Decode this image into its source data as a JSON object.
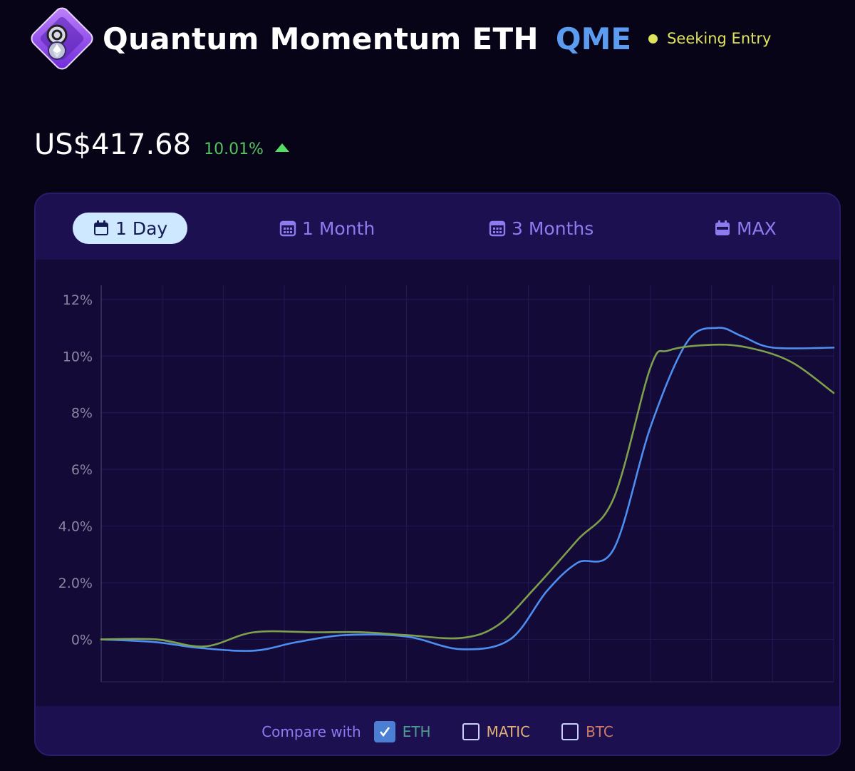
{
  "header": {
    "fund_name": "Quantum Momentum ETH",
    "ticker": "QME",
    "status": "Seeking Entry",
    "logo_icon": "eth-vault-logo-icon"
  },
  "price": {
    "value": "US$417.68",
    "change": "10.01%",
    "direction": "up"
  },
  "tabs": [
    {
      "label": "1 Day",
      "icon": "calendar-icon",
      "active": true
    },
    {
      "label": "1 Month",
      "icon": "calendar-icon",
      "active": false
    },
    {
      "label": "3 Months",
      "icon": "calendar-icon",
      "active": false
    },
    {
      "label": "MAX",
      "icon": "calendar-icon",
      "active": false
    }
  ],
  "compare": {
    "label": "Compare with",
    "options": [
      {
        "label": "ETH",
        "checked": true,
        "color": "#4f9c8e"
      },
      {
        "label": "MATIC",
        "checked": false,
        "color": "#e0b078"
      },
      {
        "label": "BTC",
        "checked": false,
        "color": "#d07a64"
      }
    ]
  },
  "chart_data": {
    "type": "line",
    "ylim": [
      -1.5,
      12.5
    ],
    "xlim": [
      0,
      12
    ],
    "y_ticks": [
      {
        "value": 12,
        "label": "12%"
      },
      {
        "value": 10,
        "label": "10%"
      },
      {
        "value": 8,
        "label": "8%"
      },
      {
        "value": 6,
        "label": "6%"
      },
      {
        "value": 4,
        "label": "4.0%"
      },
      {
        "value": 2,
        "label": "2.0%"
      },
      {
        "value": 0,
        "label": "0%"
      }
    ],
    "grid": true,
    "series": [
      {
        "color": "#4d8ef0",
        "x": [
          0,
          0.9,
          1.6,
          2.5,
          3.2,
          4.0,
          5.0,
          5.9,
          6.7,
          7.3,
          7.8,
          8.4,
          9.0,
          9.6,
          10.1,
          10.5,
          11.0,
          12.0
        ],
        "y": [
          0,
          -0.1,
          -0.3,
          -0.4,
          -0.1,
          0.15,
          0.1,
          -0.35,
          0.0,
          1.7,
          2.7,
          3.2,
          7.5,
          10.5,
          11.0,
          10.7,
          10.3,
          10.3
        ]
      },
      {
        "color": "#7ea04a",
        "x": [
          0,
          0.9,
          1.7,
          2.5,
          3.5,
          4.3,
          5.0,
          5.9,
          6.5,
          7.1,
          7.8,
          8.4,
          9.0,
          9.3,
          10.0,
          10.6,
          11.3,
          12.0
        ],
        "y": [
          0,
          0,
          -0.25,
          0.25,
          0.25,
          0.25,
          0.15,
          0.05,
          0.5,
          1.8,
          3.5,
          5.0,
          9.6,
          10.2,
          10.4,
          10.3,
          9.8,
          8.7
        ]
      }
    ]
  }
}
